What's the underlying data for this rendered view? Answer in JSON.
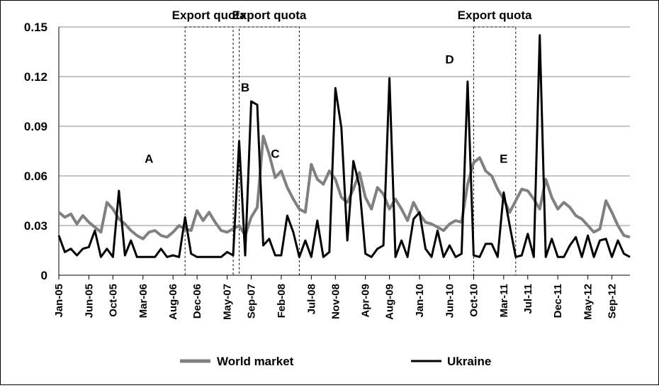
{
  "chart_data": {
    "type": "line",
    "title": "",
    "xlabel": "",
    "ylabel": "",
    "ylim": [
      0,
      0.15
    ],
    "yticks": [
      "0",
      "0.03",
      "0.06",
      "0.09",
      "0.12",
      "0.15"
    ],
    "grid": "horizontal",
    "legend_position": "bottom",
    "x_start": "2005-01",
    "x_end": "2012-12",
    "x_tick_labels": [
      "Jan-05",
      "Jun-05",
      "Oct-05",
      "Mar-06",
      "Aug-06",
      "Dec-06",
      "May-07",
      "Sep-07",
      "Feb-08",
      "Jul-08",
      "Nov-08",
      "Apr-09",
      "Aug-09",
      "Jan-10",
      "Jun-10",
      "Oct-10",
      "Mar-11",
      "Jul-11",
      "Dec-11",
      "May-12",
      "Sep-12"
    ],
    "x_tick_dates": [
      "2005-01",
      "2005-06",
      "2005-10",
      "2006-03",
      "2006-08",
      "2006-12",
      "2007-05",
      "2007-09",
      "2008-02",
      "2008-07",
      "2008-11",
      "2009-04",
      "2009-08",
      "2010-01",
      "2010-06",
      "2010-10",
      "2011-03",
      "2011-07",
      "2011-12",
      "2012-05",
      "2012-09"
    ],
    "export_quota_periods": [
      {
        "label": "Export quota",
        "start": "2006-10",
        "end": "2007-06"
      },
      {
        "label": "Export quota",
        "start": "2007-07",
        "end": "2008-05"
      },
      {
        "label": "Export quota",
        "start": "2010-10",
        "end": "2011-05"
      }
    ],
    "annotations": [
      {
        "text": "A",
        "date": "2006-04",
        "y": 0.068
      },
      {
        "text": "B",
        "date": "2007-08",
        "y": 0.111
      },
      {
        "text": "C",
        "date": "2008-01",
        "y": 0.071
      },
      {
        "text": "D",
        "date": "2010-06",
        "y": 0.128
      },
      {
        "text": "E",
        "date": "2011-03",
        "y": 0.068
      }
    ],
    "series": [
      {
        "name": "World market",
        "color": "#808080",
        "points": [
          [
            "2005-01",
            0.038
          ],
          [
            "2005-02",
            0.035
          ],
          [
            "2005-03",
            0.037
          ],
          [
            "2005-04",
            0.031
          ],
          [
            "2005-05",
            0.036
          ],
          [
            "2005-06",
            0.032
          ],
          [
            "2005-07",
            0.029
          ],
          [
            "2005-08",
            0.026
          ],
          [
            "2005-09",
            0.044
          ],
          [
            "2005-10",
            0.04
          ],
          [
            "2005-11",
            0.034
          ],
          [
            "2005-12",
            0.031
          ],
          [
            "2006-01",
            0.027
          ],
          [
            "2006-02",
            0.024
          ],
          [
            "2006-03",
            0.022
          ],
          [
            "2006-04",
            0.026
          ],
          [
            "2006-05",
            0.027
          ],
          [
            "2006-06",
            0.024
          ],
          [
            "2006-07",
            0.023
          ],
          [
            "2006-08",
            0.026
          ],
          [
            "2006-09",
            0.03
          ],
          [
            "2006-10",
            0.028
          ],
          [
            "2006-11",
            0.027
          ],
          [
            "2006-12",
            0.039
          ],
          [
            "2007-01",
            0.033
          ],
          [
            "2007-02",
            0.038
          ],
          [
            "2007-03",
            0.032
          ],
          [
            "2007-04",
            0.027
          ],
          [
            "2007-05",
            0.026
          ],
          [
            "2007-06",
            0.028
          ],
          [
            "2007-07",
            0.03
          ],
          [
            "2007-08",
            0.024
          ],
          [
            "2007-09",
            0.035
          ],
          [
            "2007-10",
            0.041
          ],
          [
            "2007-11",
            0.084
          ],
          [
            "2007-12",
            0.073
          ],
          [
            "2008-01",
            0.059
          ],
          [
            "2008-02",
            0.063
          ],
          [
            "2008-03",
            0.053
          ],
          [
            "2008-04",
            0.046
          ],
          [
            "2008-05",
            0.04
          ],
          [
            "2008-06",
            0.038
          ],
          [
            "2008-07",
            0.067
          ],
          [
            "2008-08",
            0.058
          ],
          [
            "2008-09",
            0.055
          ],
          [
            "2008-10",
            0.063
          ],
          [
            "2008-11",
            0.058
          ],
          [
            "2008-12",
            0.047
          ],
          [
            "2009-01",
            0.044
          ],
          [
            "2009-02",
            0.052
          ],
          [
            "2009-03",
            0.062
          ],
          [
            "2009-04",
            0.047
          ],
          [
            "2009-05",
            0.04
          ],
          [
            "2009-06",
            0.053
          ],
          [
            "2009-07",
            0.049
          ],
          [
            "2009-08",
            0.04
          ],
          [
            "2009-09",
            0.046
          ],
          [
            "2009-10",
            0.04
          ],
          [
            "2009-11",
            0.033
          ],
          [
            "2009-12",
            0.044
          ],
          [
            "2010-01",
            0.037
          ],
          [
            "2010-02",
            0.032
          ],
          [
            "2010-03",
            0.031
          ],
          [
            "2010-04",
            0.029
          ],
          [
            "2010-05",
            0.027
          ],
          [
            "2010-06",
            0.031
          ],
          [
            "2010-07",
            0.033
          ],
          [
            "2010-08",
            0.032
          ],
          [
            "2010-09",
            0.055
          ],
          [
            "2010-10",
            0.068
          ],
          [
            "2010-11",
            0.071
          ],
          [
            "2010-12",
            0.063
          ],
          [
            "2011-01",
            0.06
          ],
          [
            "2011-02",
            0.052
          ],
          [
            "2011-03",
            0.046
          ],
          [
            "2011-04",
            0.038
          ],
          [
            "2011-05",
            0.045
          ],
          [
            "2011-06",
            0.052
          ],
          [
            "2011-07",
            0.051
          ],
          [
            "2011-08",
            0.046
          ],
          [
            "2011-09",
            0.04
          ],
          [
            "2011-10",
            0.058
          ],
          [
            "2011-11",
            0.047
          ],
          [
            "2011-12",
            0.04
          ],
          [
            "2012-01",
            0.044
          ],
          [
            "2012-02",
            0.041
          ],
          [
            "2012-03",
            0.036
          ],
          [
            "2012-04",
            0.034
          ],
          [
            "2012-05",
            0.03
          ],
          [
            "2012-06",
            0.026
          ],
          [
            "2012-07",
            0.028
          ],
          [
            "2012-08",
            0.045
          ],
          [
            "2012-09",
            0.038
          ],
          [
            "2012-10",
            0.03
          ],
          [
            "2012-11",
            0.024
          ],
          [
            "2012-12",
            0.023
          ]
        ]
      },
      {
        "name": "Ukraine",
        "color": "#000000",
        "points": [
          [
            "2005-01",
            0.024
          ],
          [
            "2005-02",
            0.014
          ],
          [
            "2005-03",
            0.016
          ],
          [
            "2005-04",
            0.012
          ],
          [
            "2005-05",
            0.016
          ],
          [
            "2005-06",
            0.017
          ],
          [
            "2005-07",
            0.027
          ],
          [
            "2005-08",
            0.011
          ],
          [
            "2005-09",
            0.016
          ],
          [
            "2005-10",
            0.011
          ],
          [
            "2005-11",
            0.051
          ],
          [
            "2005-12",
            0.012
          ],
          [
            "2006-01",
            0.021
          ],
          [
            "2006-02",
            0.011
          ],
          [
            "2006-03",
            0.011
          ],
          [
            "2006-04",
            0.011
          ],
          [
            "2006-05",
            0.011
          ],
          [
            "2006-06",
            0.016
          ],
          [
            "2006-07",
            0.011
          ],
          [
            "2006-08",
            0.012
          ],
          [
            "2006-09",
            0.011
          ],
          [
            "2006-10",
            0.035
          ],
          [
            "2006-11",
            0.013
          ],
          [
            "2006-12",
            0.011
          ],
          [
            "2007-01",
            0.011
          ],
          [
            "2007-02",
            0.011
          ],
          [
            "2007-03",
            0.011
          ],
          [
            "2007-04",
            0.011
          ],
          [
            "2007-05",
            0.014
          ],
          [
            "2007-06",
            0.012
          ],
          [
            "2007-07",
            0.081
          ],
          [
            "2007-08",
            0.012
          ],
          [
            "2007-09",
            0.105
          ],
          [
            "2007-10",
            0.103
          ],
          [
            "2007-11",
            0.018
          ],
          [
            "2007-12",
            0.022
          ],
          [
            "2008-01",
            0.012
          ],
          [
            "2008-02",
            0.012
          ],
          [
            "2008-03",
            0.036
          ],
          [
            "2008-04",
            0.026
          ],
          [
            "2008-05",
            0.011
          ],
          [
            "2008-06",
            0.021
          ],
          [
            "2008-07",
            0.011
          ],
          [
            "2008-08",
            0.033
          ],
          [
            "2008-09",
            0.011
          ],
          [
            "2008-10",
            0.014
          ],
          [
            "2008-11",
            0.113
          ],
          [
            "2008-12",
            0.089
          ],
          [
            "2009-01",
            0.021
          ],
          [
            "2009-02",
            0.069
          ],
          [
            "2009-03",
            0.054
          ],
          [
            "2009-04",
            0.013
          ],
          [
            "2009-05",
            0.011
          ],
          [
            "2009-06",
            0.016
          ],
          [
            "2009-07",
            0.018
          ],
          [
            "2009-08",
            0.119
          ],
          [
            "2009-09",
            0.011
          ],
          [
            "2009-10",
            0.021
          ],
          [
            "2009-11",
            0.011
          ],
          [
            "2009-12",
            0.034
          ],
          [
            "2010-01",
            0.038
          ],
          [
            "2010-02",
            0.016
          ],
          [
            "2010-03",
            0.011
          ],
          [
            "2010-04",
            0.027
          ],
          [
            "2010-05",
            0.011
          ],
          [
            "2010-06",
            0.018
          ],
          [
            "2010-07",
            0.011
          ],
          [
            "2010-08",
            0.013
          ],
          [
            "2010-09",
            0.117
          ],
          [
            "2010-10",
            0.012
          ],
          [
            "2010-11",
            0.011
          ],
          [
            "2010-12",
            0.019
          ],
          [
            "2011-01",
            0.019
          ],
          [
            "2011-02",
            0.011
          ],
          [
            "2011-03",
            0.05
          ],
          [
            "2011-04",
            0.03
          ],
          [
            "2011-05",
            0.011
          ],
          [
            "2011-06",
            0.012
          ],
          [
            "2011-07",
            0.025
          ],
          [
            "2011-08",
            0.011
          ],
          [
            "2011-09",
            0.145
          ],
          [
            "2011-10",
            0.011
          ],
          [
            "2011-11",
            0.022
          ],
          [
            "2011-12",
            0.011
          ],
          [
            "2012-01",
            0.011
          ],
          [
            "2012-02",
            0.018
          ],
          [
            "2012-03",
            0.023
          ],
          [
            "2012-04",
            0.011
          ],
          [
            "2012-05",
            0.024
          ],
          [
            "2012-06",
            0.011
          ],
          [
            "2012-07",
            0.021
          ],
          [
            "2012-08",
            0.022
          ],
          [
            "2012-09",
            0.011
          ],
          [
            "2012-10",
            0.021
          ],
          [
            "2012-11",
            0.013
          ],
          [
            "2012-12",
            0.011
          ]
        ]
      }
    ]
  }
}
